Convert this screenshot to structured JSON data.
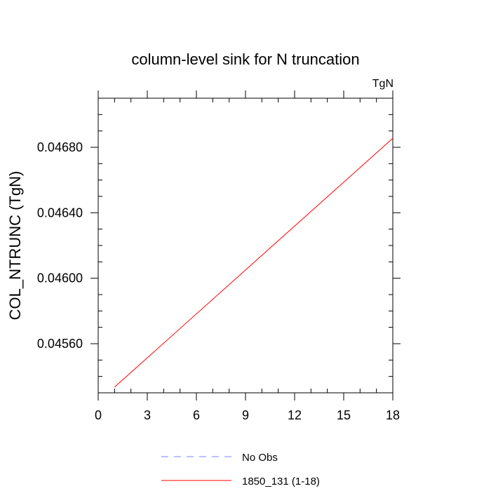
{
  "chart_data": {
    "type": "line",
    "title": "column-level sink for N truncation",
    "units_label": "TgN",
    "xlabel": "",
    "ylabel": "COL_NTRUNC  (TgN)",
    "xlim": [
      0,
      18
    ],
    "ylim": [
      0.0453,
      0.0471
    ],
    "x_major_ticks": [
      0,
      3,
      6,
      9,
      12,
      15,
      18
    ],
    "x_tick_labels": [
      "0",
      "3",
      "6",
      "9",
      "12",
      "15",
      "18"
    ],
    "x_minor_step": 1,
    "y_major_ticks": [
      0.0456,
      0.046,
      0.0464,
      0.0468
    ],
    "y_tick_labels": [
      "0.04560",
      "0.04600",
      "0.04640",
      "0.04680"
    ],
    "y_minor_step": 0.0001,
    "grid": false,
    "legend_position": "bottom",
    "series": [
      {
        "name": "No Obs",
        "color": "#8080ff",
        "style": "dashed",
        "x": [],
        "y": []
      },
      {
        "name": "1850_131 (1-18)",
        "color": "#ff0000",
        "style": "solid",
        "x": [
          1,
          18
        ],
        "y": [
          0.045335,
          0.046855
        ]
      }
    ]
  }
}
